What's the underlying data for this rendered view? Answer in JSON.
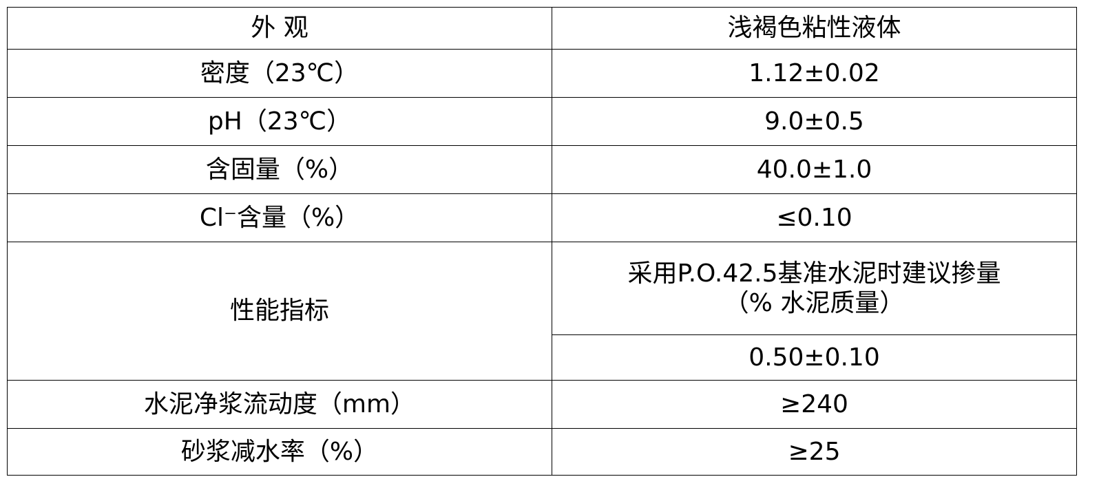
{
  "rows": [
    {
      "label": "外 观",
      "value": "浅褐色粘性液体"
    },
    {
      "label": "密度（23℃）",
      "value": "1.12±0.02"
    },
    {
      "label": "pH（23℃）",
      "value": "9.0±0.5"
    },
    {
      "label": "含固量（%）",
      "value": "40.0±1.0"
    },
    {
      "label": "Cl⁻含量（%）",
      "value": "≤0.10"
    },
    {
      "label": "性能指标",
      "value_line1": "采用P.O.42.5基准水泥时建议掺量",
      "value_line2": "（% 水泥质量）",
      "value2": "0.50±0.10"
    },
    {
      "label": "水泥净浆流动度（mm）",
      "value": "≥240"
    },
    {
      "label": "砂浆减水率（%）",
      "value": "≥25"
    }
  ]
}
